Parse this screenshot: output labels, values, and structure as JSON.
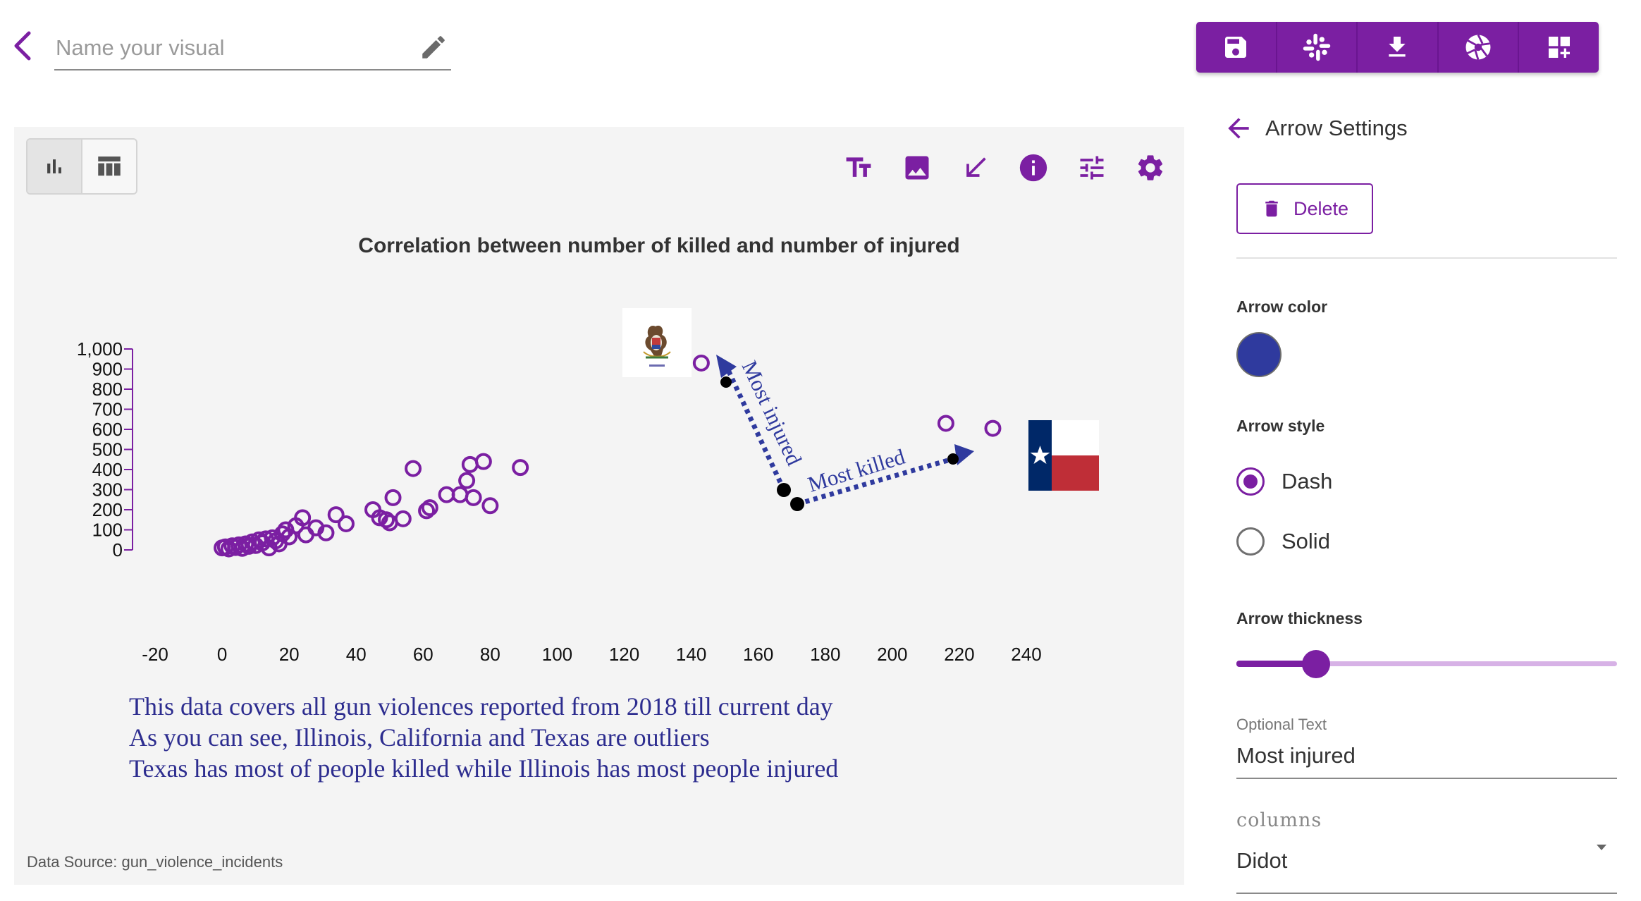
{
  "header": {
    "name_placeholder": "Name your visual",
    "name_value": "",
    "toolbar": [
      {
        "name": "save-icon"
      },
      {
        "name": "slack-icon"
      },
      {
        "name": "download-icon"
      },
      {
        "name": "camera-shutter-icon"
      },
      {
        "name": "add-widget-icon"
      }
    ]
  },
  "chart_panel": {
    "view_toggle": [
      "bar-chart-icon",
      "table-icon"
    ],
    "tools": [
      "text-size-icon",
      "image-icon",
      "arrow-icon",
      "info-icon",
      "tune-icon",
      "gear-icon"
    ],
    "title": "Correlation between number of killed and number of injured",
    "caption": [
      "This data covers all gun violences reported from 2018 till current day",
      "As you can see, Illinois, California and Texas are outliers",
      "Texas has most of people killed while Illinois has most people injured"
    ],
    "data_source": "Data Source: gun_violence_incidents",
    "annotations": {
      "arrow_most_injured": "Most injured",
      "arrow_most_killed": "Most killed"
    }
  },
  "chart_data": {
    "type": "scatter",
    "title": "Correlation between number of killed and number of injured",
    "xlabel": "",
    "ylabel": "",
    "xlim": [
      -20,
      240
    ],
    "ylim": [
      0,
      1000
    ],
    "x_ticks": [
      -20,
      0,
      20,
      40,
      60,
      80,
      100,
      120,
      140,
      160,
      180,
      200,
      220,
      240
    ],
    "y_ticks": [
      "0",
      "100",
      "200",
      "300",
      "400",
      "500",
      "600",
      "700",
      "800",
      "900",
      "1,000"
    ],
    "grid": false,
    "point_color": "#7b1fa2",
    "points": [
      [
        0,
        10
      ],
      [
        1,
        15
      ],
      [
        2,
        5
      ],
      [
        3,
        20
      ],
      [
        4,
        12
      ],
      [
        5,
        25
      ],
      [
        6,
        8
      ],
      [
        7,
        30
      ],
      [
        8,
        18
      ],
      [
        9,
        40
      ],
      [
        10,
        22
      ],
      [
        11,
        50
      ],
      [
        12,
        35
      ],
      [
        13,
        55
      ],
      [
        14,
        10
      ],
      [
        15,
        60
      ],
      [
        16,
        45
      ],
      [
        17,
        30
      ],
      [
        18,
        80
      ],
      [
        19,
        100
      ],
      [
        20,
        65
      ],
      [
        22,
        120
      ],
      [
        24,
        160
      ],
      [
        25,
        75
      ],
      [
        28,
        110
      ],
      [
        31,
        85
      ],
      [
        34,
        175
      ],
      [
        37,
        130
      ],
      [
        45,
        200
      ],
      [
        47,
        160
      ],
      [
        49,
        150
      ],
      [
        50,
        135
      ],
      [
        51,
        260
      ],
      [
        54,
        155
      ],
      [
        57,
        405
      ],
      [
        61,
        195
      ],
      [
        62,
        210
      ],
      [
        67,
        275
      ],
      [
        71,
        275
      ],
      [
        73,
        345
      ],
      [
        74,
        425
      ],
      [
        75,
        260
      ],
      [
        78,
        440
      ],
      [
        80,
        220
      ],
      [
        89,
        410
      ],
      [
        143,
        930
      ],
      [
        216,
        630
      ],
      [
        230,
        605
      ]
    ]
  },
  "settings": {
    "title": "Arrow Settings",
    "delete_label": "Delete",
    "arrow_color_label": "Arrow color",
    "arrow_color": "#2f3a9e",
    "arrow_style_label": "Arrow style",
    "style_options": [
      "Dash",
      "Solid"
    ],
    "style_selected": "Dash",
    "thickness_label": "Arrow thickness",
    "thickness_value": 0.21,
    "optional_text_label": "Optional Text",
    "optional_text_value": "Most injured",
    "font_label": "columns",
    "font_value": "Didot"
  }
}
